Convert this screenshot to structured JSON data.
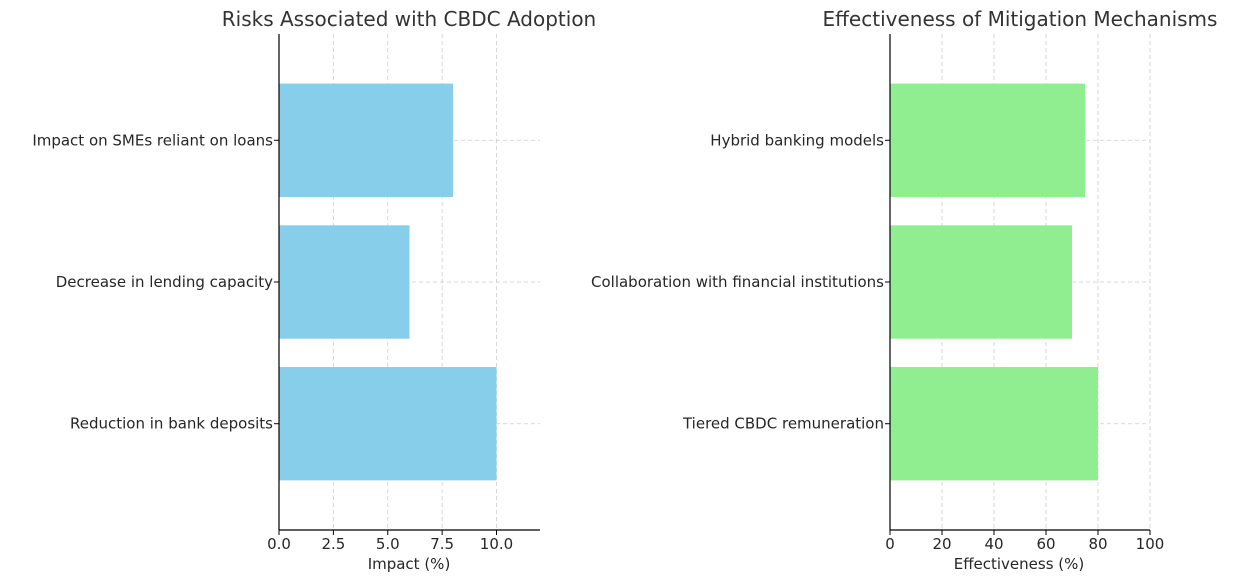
{
  "chart_data": [
    {
      "type": "bar",
      "orientation": "horizontal",
      "title": "Risks Associated with CBDC Adoption",
      "xlabel": "Impact (%)",
      "ylabel": "",
      "categories": [
        "Reduction in bank deposits",
        "Decrease in lending capacity",
        "Impact on SMEs reliant on loans"
      ],
      "values": [
        10,
        6,
        8
      ],
      "xlim": [
        0,
        12
      ],
      "xticks": [
        0,
        2.5,
        5,
        7.5,
        10
      ],
      "xtick_labels": [
        "0.0",
        "2.5",
        "5.0",
        "7.5",
        "10.0"
      ],
      "color": "#87CEEB",
      "grid": true
    },
    {
      "type": "bar",
      "orientation": "horizontal",
      "title": "Effectiveness of Mitigation Mechanisms",
      "xlabel": "Effectiveness (%)",
      "ylabel": "",
      "categories": [
        "Tiered CBDC remuneration",
        "Collaboration with financial institutions",
        "Hybrid banking models"
      ],
      "values": [
        80,
        70,
        75
      ],
      "xlim": [
        0,
        100
      ],
      "xticks": [
        0,
        20,
        40,
        60,
        80,
        100
      ],
      "xtick_labels": [
        "0",
        "20",
        "40",
        "60",
        "80",
        "100"
      ],
      "color": "#90EE90",
      "grid": true
    }
  ]
}
